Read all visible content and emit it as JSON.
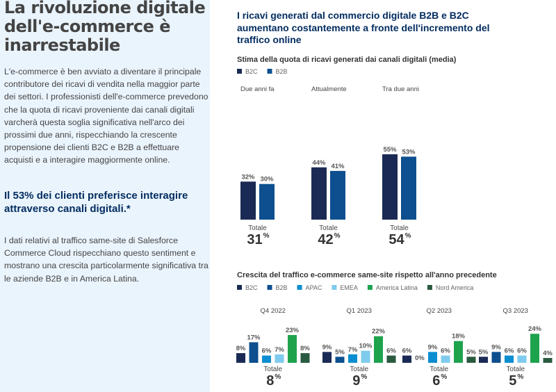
{
  "left": {
    "title": "La rivoluzione digitale dell'e-commerce è inarrestabile",
    "intro": "L'e-commerce è ben avviato a diventare il principale contributore dei ricavi di vendita nella maggior parte dei settori. I professionisti dell'e-commerce prevedono che la quota di ricavi proveniente dai canali digitali varcherà questa soglia significativa nell'arco dei prossimi due anni, rispecchiando la crescente propensione dei clienti B2C e B2B a effettuare acquisti e a interagire maggiormente online.",
    "stat": "Il 53% dei clienti preferisce interagire attraverso canali digitali.*",
    "paragraph2": "I dati relativi al traffico same-site di Salesforce Commerce Cloud rispecchiano questo sentiment e mostrano una crescita particolarmente significativa tra le aziende B2B e in America Latina."
  },
  "right": {
    "title": "I ricavi generati dal commercio digitale B2B e B2C aumentano costantemente a fronte dell'incremento del traffico online"
  },
  "chart_data": [
    {
      "type": "bar",
      "title": "Stima della quota di ricavi generati dai canali digitali (media)",
      "categories": [
        "Due anni fa",
        "Attualmente",
        "Tra due anni"
      ],
      "series": [
        {
          "name": "B2C",
          "color": "#1b2a55",
          "values": [
            32,
            44,
            55
          ]
        },
        {
          "name": "B2B",
          "color": "#0d4f8f",
          "values": [
            30,
            41,
            53
          ]
        }
      ],
      "total_label": "Totale",
      "totals": [
        31,
        42,
        54
      ],
      "unit": "%",
      "legend": "top-left",
      "grid": false
    },
    {
      "type": "bar",
      "title": "Crescita del traffico e-commerce same-site rispetto all'anno precedente",
      "categories": [
        "Q4 2022",
        "Q1 2023",
        "Q2 2023",
        "Q3 2023"
      ],
      "series": [
        {
          "name": "B2C",
          "color": "#1b2a55",
          "values": [
            8,
            9,
            6,
            5
          ]
        },
        {
          "name": "B2B",
          "color": "#0d4f8f",
          "values": [
            17,
            5,
            0,
            9
          ]
        },
        {
          "name": "APAC",
          "color": "#0b8ed1",
          "values": [
            6,
            7,
            9,
            6
          ]
        },
        {
          "name": "EMEA",
          "color": "#7fcbee",
          "values": [
            7,
            10,
            6,
            6
          ]
        },
        {
          "name": "America Latina",
          "color": "#1ea34d",
          "values": [
            23,
            22,
            18,
            24
          ]
        },
        {
          "name": "Nord America",
          "color": "#2a5a40",
          "values": [
            8,
            6,
            5,
            4
          ]
        }
      ],
      "total_label": "Totale",
      "totals": [
        8,
        9,
        6,
        5
      ],
      "unit": "%",
      "legend": "top-left",
      "grid": false
    }
  ]
}
